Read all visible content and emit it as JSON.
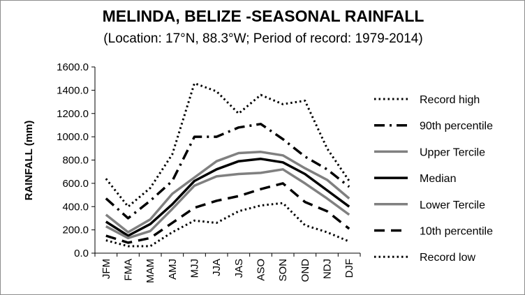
{
  "chart_data": {
    "type": "line",
    "title": "MELINDA, BELIZE  -SEASONAL RAINFALL",
    "subtitle": "(Location: 17°N, 88.3°W; Period of record: 1979-2014)",
    "xlabel": "",
    "ylabel": "RAINFALL (mm)",
    "ylim": [
      0,
      1600
    ],
    "ytick_step": 200,
    "ytick_labels": [
      "0.0",
      "200.0",
      "400.0",
      "600.0",
      "800.0",
      "1000.0",
      "1200.0",
      "1400.0",
      "1600.0"
    ],
    "categories": [
      "JFM",
      "FMA",
      "MAM",
      "AMJ",
      "MJJ",
      "JJA",
      "JAS",
      "ASO",
      "SON",
      "OND",
      "NDJ",
      "DJF"
    ],
    "grid": false,
    "legend_position": "right",
    "series": [
      {
        "name": "Record high",
        "style": "dotted",
        "color": "#000000",
        "values": [
          640,
          400,
          560,
          850,
          1460,
          1390,
          1200,
          1360,
          1280,
          1310,
          900,
          620
        ]
      },
      {
        "name": "90th percentile",
        "style": "dashdot",
        "color": "#000000",
        "values": [
          470,
          300,
          450,
          620,
          1000,
          1000,
          1080,
          1110,
          980,
          830,
          720,
          570
        ]
      },
      {
        "name": "Upper Tercile",
        "style": "solid",
        "color": "#808080",
        "values": [
          330,
          180,
          290,
          510,
          650,
          790,
          860,
          870,
          840,
          730,
          630,
          470
        ]
      },
      {
        "name": "Median",
        "style": "solid",
        "color": "#000000",
        "values": [
          270,
          150,
          250,
          420,
          620,
          720,
          790,
          810,
          780,
          680,
          540,
          400
        ]
      },
      {
        "name": "Lower Tercile",
        "style": "solid",
        "color": "#808080",
        "values": [
          230,
          130,
          190,
          380,
          580,
          660,
          680,
          690,
          720,
          600,
          470,
          330
        ]
      },
      {
        "name": "10th percentile",
        "style": "dashed",
        "color": "#000000",
        "values": [
          150,
          90,
          130,
          260,
          390,
          450,
          490,
          550,
          600,
          440,
          360,
          210
        ]
      },
      {
        "name": "Record low",
        "style": "dotted",
        "color": "#000000",
        "values": [
          110,
          60,
          60,
          180,
          280,
          260,
          360,
          410,
          430,
          240,
          180,
          100
        ]
      }
    ]
  }
}
